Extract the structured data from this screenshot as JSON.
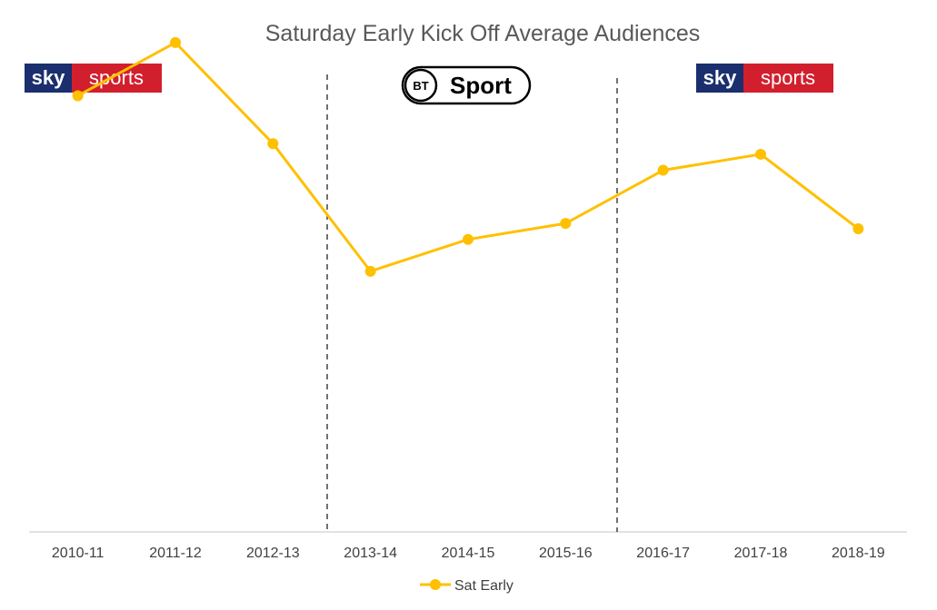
{
  "chart_data": {
    "type": "line",
    "title": "Saturday Early Kick Off Average Audiences",
    "xlabel": "",
    "ylabel": "",
    "categories": [
      "2010-11",
      "2011-12",
      "2012-13",
      "2013-14",
      "2014-15",
      "2015-16",
      "2016-17",
      "2017-18",
      "2018-19"
    ],
    "series": [
      {
        "name": "Sat Early",
        "values": [
          0.82,
          0.92,
          0.73,
          0.49,
          0.55,
          0.58,
          0.68,
          0.71,
          0.57
        ],
        "color": "#FFC000"
      }
    ],
    "ylim": [
      0,
      1
    ],
    "grid": false,
    "legend": "bottom",
    "broadcaster_periods": [
      {
        "broadcaster": "sky sports",
        "from": "2010-11",
        "to": "2012-13"
      },
      {
        "broadcaster": "BT Sport",
        "from": "2013-14",
        "to": "2015-16"
      },
      {
        "broadcaster": "sky sports",
        "from": "2016-17",
        "to": "2018-19"
      }
    ]
  },
  "logos": {
    "sky_left": {
      "sky": "sky",
      "sports": "sports"
    },
    "bt": {
      "bt": "BT",
      "sport": "Sport"
    },
    "sky_right": {
      "sky": "sky",
      "sports": "sports"
    }
  },
  "colors": {
    "line": "#FFC000",
    "divider": "#404040",
    "sky_blue": "#1B2F6E",
    "sky_red": "#D21F2D"
  }
}
